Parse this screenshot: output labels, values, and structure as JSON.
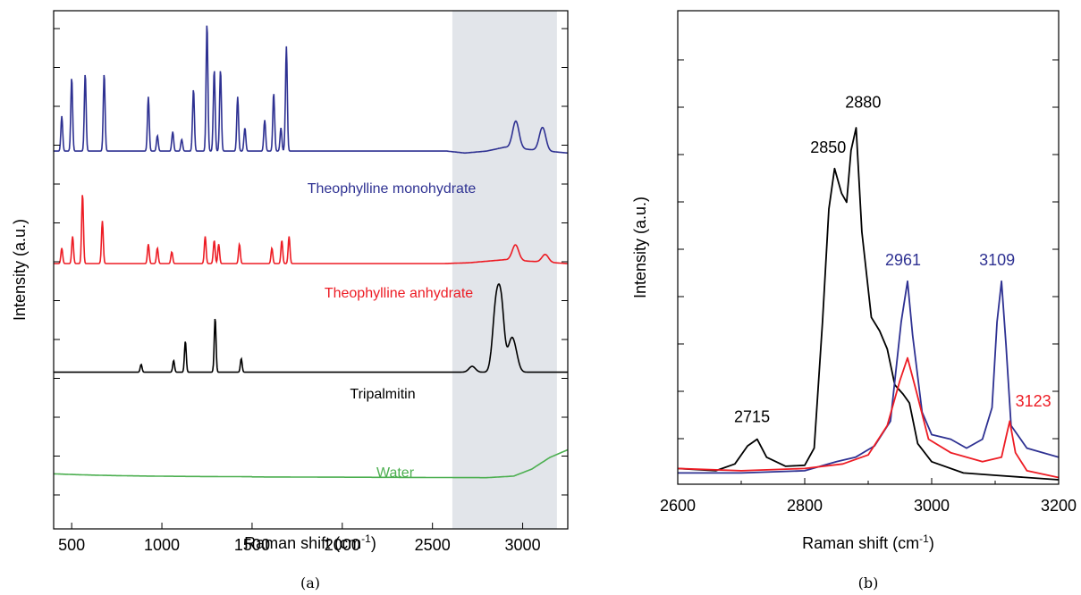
{
  "chart_data": [
    {
      "type": "line",
      "xlabel": "Raman shift (cm",
      "xlabel_sup": "-1",
      "xlabel_end": ")",
      "ylabel": "Intensity (a.u.)",
      "xlim": [
        400,
        3250
      ],
      "x_ticks": [
        500,
        1000,
        1500,
        2000,
        2500,
        3000
      ],
      "y_ticks_shown": false,
      "grid": false,
      "shaded_region": [
        2610,
        3190
      ],
      "shaded_color": "#e2e5ea",
      "caption": "(a)",
      "series": [
        {
          "name": "Theophylline monohydrate",
          "color": "#2e3192",
          "baseline": 0.67,
          "tail": [
            [
              1720,
              0.67
            ],
            [
              2580,
              0.67
            ],
            [
              2680,
              0.665
            ],
            [
              2800,
              0.67
            ],
            [
              2900,
              0.68
            ],
            [
              3250,
              0.665
            ]
          ],
          "peaks": [
            [
              445,
              0.09
            ],
            [
              500,
              0.19
            ],
            [
              575,
              0.2
            ],
            [
              680,
              0.2
            ],
            [
              925,
              0.14
            ],
            [
              975,
              0.04
            ],
            [
              1060,
              0.05
            ],
            [
              1110,
              0.03
            ],
            [
              1175,
              0.16
            ],
            [
              1250,
              0.33
            ],
            [
              1290,
              0.21
            ],
            [
              1325,
              0.21
            ],
            [
              1420,
              0.14
            ],
            [
              1460,
              0.06
            ],
            [
              1570,
              0.08
            ],
            [
              1620,
              0.15
            ],
            [
              1660,
              0.06
            ],
            [
              1690,
              0.27
            ],
            [
              2962,
              0.07
            ],
            [
              3110,
              0.06
            ]
          ]
        },
        {
          "name": "Theophylline anhydrate",
          "color": "#ed1c24",
          "baseline": 0.38,
          "tail": [
            [
              1740,
              0.38
            ],
            [
              2560,
              0.38
            ],
            [
              2700,
              0.382
            ],
            [
              2900,
              0.39
            ],
            [
              3250,
              0.38
            ]
          ],
          "peaks": [
            [
              445,
              0.04
            ],
            [
              505,
              0.07
            ],
            [
              560,
              0.18
            ],
            [
              670,
              0.11
            ],
            [
              925,
              0.05
            ],
            [
              975,
              0.04
            ],
            [
              1055,
              0.03
            ],
            [
              1240,
              0.07
            ],
            [
              1290,
              0.06
            ],
            [
              1315,
              0.05
            ],
            [
              1430,
              0.05
            ],
            [
              1610,
              0.04
            ],
            [
              1665,
              0.06
            ],
            [
              1705,
              0.07
            ],
            [
              2960,
              0.04
            ],
            [
              3125,
              0.02
            ]
          ]
        },
        {
          "name": "Tripalmitin",
          "color": "#000000",
          "baseline": 0.1,
          "tail": [
            [
              1500,
              0.1
            ],
            [
              2600,
              0.1
            ],
            [
              2710,
              0.1
            ],
            [
              3050,
              0.1
            ],
            [
              3250,
              0.1
            ]
          ],
          "peaks": [
            [
              885,
              0.02
            ],
            [
              1065,
              0.03
            ],
            [
              1130,
              0.08
            ],
            [
              1295,
              0.14
            ],
            [
              1440,
              0.035
            ],
            [
              2720,
              0.015
            ],
            [
              2850,
              0.15
            ],
            [
              2880,
              0.17
            ],
            [
              2935,
              0.07
            ],
            [
              2960,
              0.04
            ]
          ]
        },
        {
          "name": "Water",
          "color": "#4caf50",
          "baseline": -0.17,
          "tail": [
            [
              1500,
              -0.17
            ],
            [
              2800,
              -0.172
            ],
            [
              2950,
              -0.168
            ],
            [
              3050,
              -0.15
            ],
            [
              3150,
              -0.12
            ],
            [
              3250,
              -0.1
            ]
          ],
          "peaks": []
        }
      ]
    },
    {
      "type": "line",
      "xlabel": "Raman shift (cm",
      "xlabel_sup": "-1",
      "xlabel_end": ")",
      "ylabel": "Intensity (a.u.)",
      "xlim": [
        2600,
        3200
      ],
      "ylim": [
        0,
        1.0
      ],
      "x_ticks": [
        2600,
        2800,
        3000,
        3200
      ],
      "y_ticks_shown": false,
      "grid": false,
      "caption": "(b)",
      "series": [
        {
          "name": "",
          "color": "#000000",
          "points": [
            [
              2600,
              0.025
            ],
            [
              2660,
              0.02
            ],
            [
              2690,
              0.035
            ],
            [
              2710,
              0.075
            ],
            [
              2725,
              0.09
            ],
            [
              2740,
              0.05
            ],
            [
              2770,
              0.03
            ],
            [
              2800,
              0.032
            ],
            [
              2815,
              0.07
            ],
            [
              2828,
              0.35
            ],
            [
              2838,
              0.6
            ],
            [
              2847,
              0.69
            ],
            [
              2858,
              0.635
            ],
            [
              2866,
              0.615
            ],
            [
              2873,
              0.73
            ],
            [
              2881,
              0.78
            ],
            [
              2890,
              0.55
            ],
            [
              2905,
              0.36
            ],
            [
              2918,
              0.33
            ],
            [
              2930,
              0.29
            ],
            [
              2942,
              0.21
            ],
            [
              2955,
              0.19
            ],
            [
              2965,
              0.17
            ],
            [
              2978,
              0.08
            ],
            [
              3000,
              0.04
            ],
            [
              3050,
              0.015
            ],
            [
              3100,
              0.01
            ],
            [
              3200,
              0.0
            ]
          ]
        },
        {
          "name": "",
          "color": "#2e3192",
          "points": [
            [
              2600,
              0.015
            ],
            [
              2700,
              0.015
            ],
            [
              2800,
              0.02
            ],
            [
              2850,
              0.04
            ],
            [
              2880,
              0.05
            ],
            [
              2910,
              0.075
            ],
            [
              2935,
              0.13
            ],
            [
              2952,
              0.35
            ],
            [
              2962,
              0.44
            ],
            [
              2970,
              0.32
            ],
            [
              2985,
              0.15
            ],
            [
              3000,
              0.1
            ],
            [
              3030,
              0.09
            ],
            [
              3055,
              0.07
            ],
            [
              3080,
              0.09
            ],
            [
              3095,
              0.16
            ],
            [
              3103,
              0.35
            ],
            [
              3110,
              0.44
            ],
            [
              3117,
              0.3
            ],
            [
              3125,
              0.12
            ],
            [
              3150,
              0.07
            ],
            [
              3200,
              0.05
            ]
          ]
        },
        {
          "name": "",
          "color": "#ed1c24",
          "points": [
            [
              2600,
              0.025
            ],
            [
              2700,
              0.02
            ],
            [
              2800,
              0.025
            ],
            [
              2860,
              0.035
            ],
            [
              2900,
              0.055
            ],
            [
              2930,
              0.12
            ],
            [
              2950,
              0.22
            ],
            [
              2962,
              0.27
            ],
            [
              2975,
              0.2
            ],
            [
              2995,
              0.09
            ],
            [
              3030,
              0.06
            ],
            [
              3080,
              0.04
            ],
            [
              3110,
              0.05
            ],
            [
              3118,
              0.1
            ],
            [
              3123,
              0.13
            ],
            [
              3132,
              0.06
            ],
            [
              3150,
              0.02
            ],
            [
              3200,
              0.005
            ]
          ]
        }
      ],
      "annotations": [
        {
          "text": "2715",
          "x": 2717,
          "y": 0.128,
          "color": "#000000"
        },
        {
          "text": "2850",
          "x": 2837,
          "y": 0.725,
          "color": "#000000"
        },
        {
          "text": "2880",
          "x": 2892,
          "y": 0.825,
          "color": "#000000"
        },
        {
          "text": "2961",
          "x": 2955,
          "y": 0.475,
          "color": "#2e3192"
        },
        {
          "text": "3109",
          "x": 3103,
          "y": 0.475,
          "color": "#2e3192"
        },
        {
          "text": "3123",
          "x": 3160,
          "y": 0.162,
          "color": "#ed1c24"
        }
      ]
    }
  ]
}
